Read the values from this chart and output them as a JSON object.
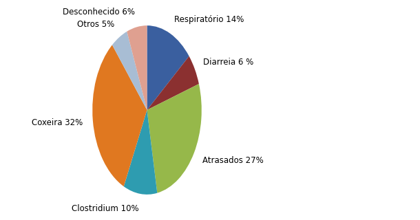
{
  "labels": [
    "Respiratório 14%",
    "Diarreia 6 %",
    "Atrasados 27%",
    "Clostridium 10%",
    "Coxeira 32%",
    "Otros 5%",
    "Desconhecido 6%"
  ],
  "values": [
    14,
    6,
    27,
    10,
    32,
    5,
    6
  ],
  "colors": [
    "#3A5F9F",
    "#8B3030",
    "#96B84A",
    "#2E9CB0",
    "#E07820",
    "#A8BDD4",
    "#DFA090"
  ],
  "startangle": 90,
  "figsize": [
    6.1,
    3.2
  ],
  "dpi": 100,
  "labeldistance": 1.18,
  "fontsize": 8.5
}
